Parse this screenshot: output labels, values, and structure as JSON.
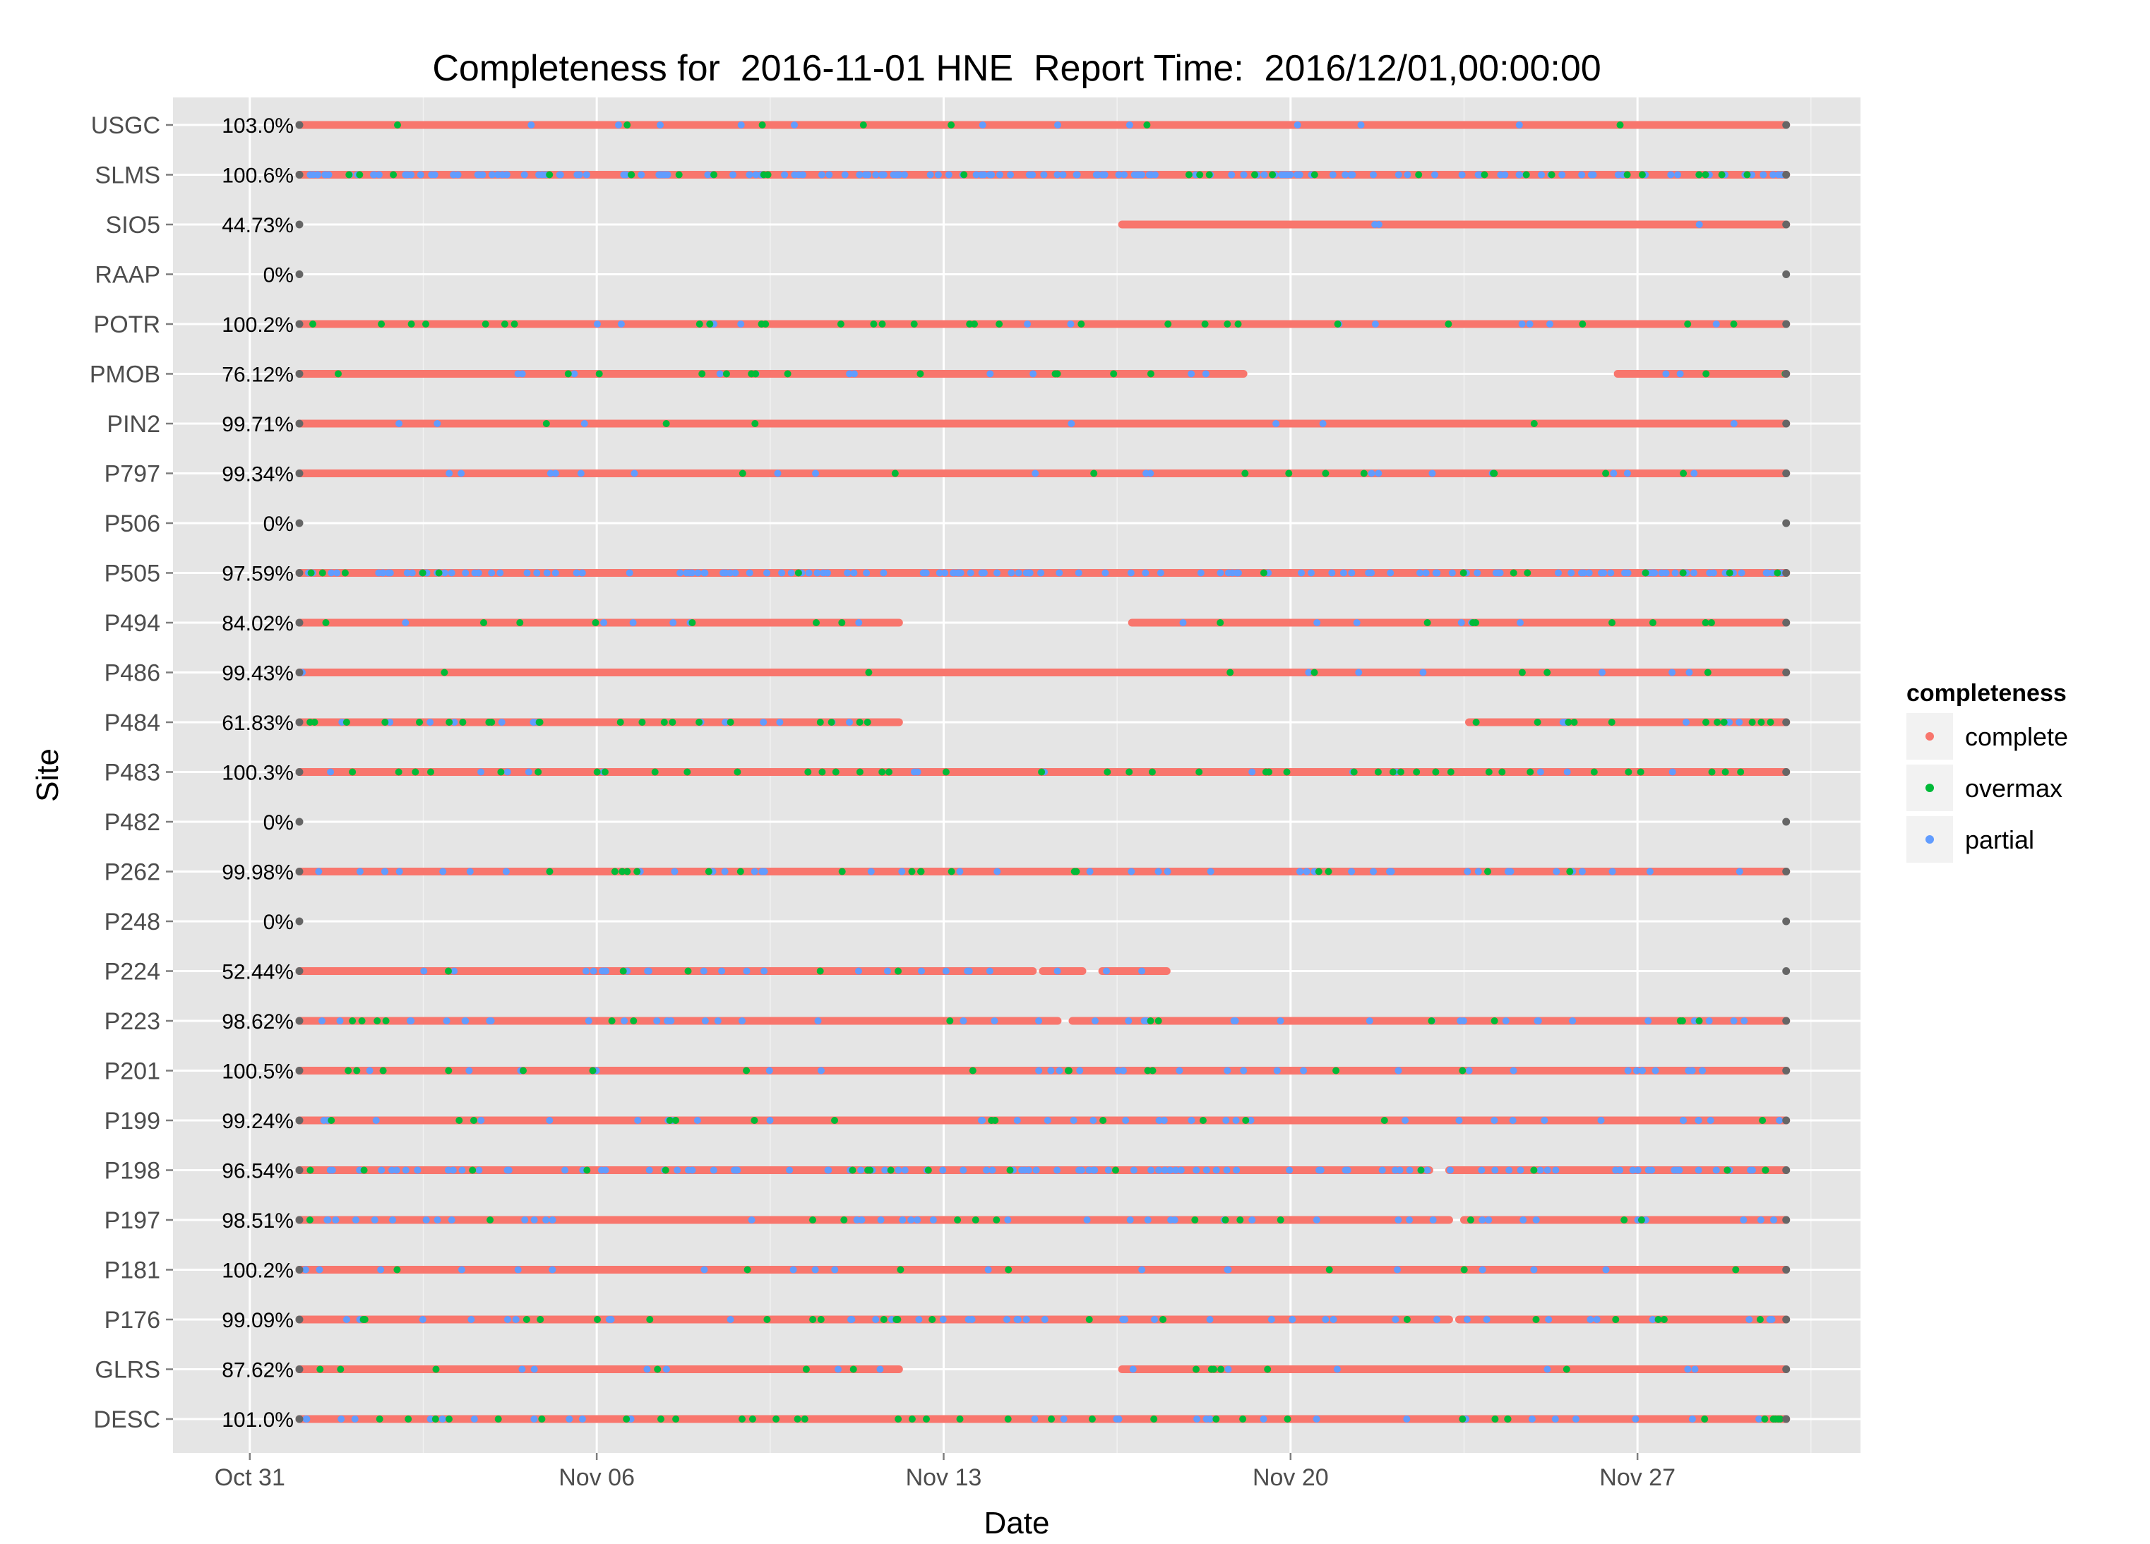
{
  "chart_data": {
    "type": "scatter",
    "title": "Completeness for  2016-11-01 HNE  Report Time:  2016/12/01,00:00:00",
    "xlabel": "Date",
    "ylabel": "Site",
    "x_ticks": [
      "Oct 31",
      "Nov 06",
      "Nov 13",
      "Nov 20",
      "Nov 27"
    ],
    "x_tick_days": [
      0,
      7,
      14,
      21,
      28
    ],
    "x_range_days": [
      -1.55,
      32.5
    ],
    "data_range_days": [
      1,
      31
    ],
    "grid": true,
    "legend": {
      "title": "completeness",
      "placement": "right",
      "entries": [
        {
          "label": "complete",
          "color": "#F8766D"
        },
        {
          "label": "overmax",
          "color": "#00BA38"
        },
        {
          "label": "partial",
          "color": "#619CFF"
        }
      ]
    },
    "endpoint_color": "#666666",
    "series": [
      {
        "site": "USGC",
        "completeness": "103.0%",
        "segments": [
          [
            1,
            31
          ]
        ],
        "partial_level": 0.03,
        "overmax_level": 0.02
      },
      {
        "site": "SLMS",
        "completeness": "100.6%",
        "segments": [
          [
            1,
            31
          ]
        ],
        "partial_level": 0.45,
        "overmax_level": 0.08
      },
      {
        "site": "SIO5",
        "completeness": "44.73%",
        "segments": [
          [
            17.6,
            31
          ]
        ],
        "partial_level": 0.02,
        "overmax_level": 0.0
      },
      {
        "site": "RAAP",
        "completeness": "0%",
        "segments": [],
        "partial_level": 0,
        "overmax_level": 0
      },
      {
        "site": "POTR",
        "completeness": "100.2%",
        "segments": [
          [
            1,
            31
          ]
        ],
        "partial_level": 0.04,
        "overmax_level": 0.08
      },
      {
        "site": "PMOB",
        "completeness": "76.12%",
        "segments": [
          [
            1,
            20.05
          ],
          [
            27.6,
            31
          ]
        ],
        "partial_level": 0.05,
        "overmax_level": 0.06
      },
      {
        "site": "PIN2",
        "completeness": "99.71%",
        "segments": [
          [
            1,
            31
          ]
        ],
        "partial_level": 0.02,
        "overmax_level": 0.01
      },
      {
        "site": "P797",
        "completeness": "99.34%",
        "segments": [
          [
            1,
            31
          ]
        ],
        "partial_level": 0.05,
        "overmax_level": 0.03
      },
      {
        "site": "P506",
        "completeness": "0%",
        "segments": [],
        "partial_level": 0,
        "overmax_level": 0
      },
      {
        "site": "P505",
        "completeness": "97.59%",
        "segments": [
          [
            1,
            31
          ]
        ],
        "partial_level": 0.4,
        "overmax_level": 0.04
      },
      {
        "site": "P494",
        "completeness": "84.02%",
        "segments": [
          [
            1,
            13.1
          ],
          [
            17.8,
            31
          ]
        ],
        "partial_level": 0.04,
        "overmax_level": 0.05
      },
      {
        "site": "P486",
        "completeness": "99.43%",
        "segments": [
          [
            1,
            31
          ]
        ],
        "partial_level": 0.02,
        "overmax_level": 0.02
      },
      {
        "site": "P484",
        "completeness": "61.83%",
        "segments": [
          [
            1,
            13.1
          ],
          [
            24.6,
            31
          ]
        ],
        "partial_level": 0.1,
        "overmax_level": 0.15
      },
      {
        "site": "P483",
        "completeness": "100.3%",
        "segments": [
          [
            1,
            31
          ]
        ],
        "partial_level": 0.04,
        "overmax_level": 0.12
      },
      {
        "site": "P482",
        "completeness": "0%",
        "segments": [],
        "partial_level": 0,
        "overmax_level": 0
      },
      {
        "site": "P262",
        "completeness": "99.98%",
        "segments": [
          [
            1,
            31
          ]
        ],
        "partial_level": 0.12,
        "overmax_level": 0.05
      },
      {
        "site": "P248",
        "completeness": "0%",
        "segments": [],
        "partial_level": 0,
        "overmax_level": 0
      },
      {
        "site": "P224",
        "completeness": "52.44%",
        "segments": [
          [
            1,
            15.8
          ],
          [
            16.0,
            16.8
          ],
          [
            17.2,
            18.5
          ]
        ],
        "partial_level": 0.12,
        "overmax_level": 0.03
      },
      {
        "site": "P223",
        "completeness": "98.62%",
        "segments": [
          [
            1,
            16.3
          ],
          [
            16.6,
            31
          ]
        ],
        "partial_level": 0.12,
        "overmax_level": 0.04
      },
      {
        "site": "P201",
        "completeness": "100.5%",
        "segments": [
          [
            1,
            31
          ]
        ],
        "partial_level": 0.08,
        "overmax_level": 0.04
      },
      {
        "site": "P199",
        "completeness": "99.24%",
        "segments": [
          [
            1,
            31
          ]
        ],
        "partial_level": 0.1,
        "overmax_level": 0.04
      },
      {
        "site": "P198",
        "completeness": "96.54%",
        "segments": [
          [
            1,
            23.8
          ],
          [
            24.2,
            31
          ]
        ],
        "partial_level": 0.3,
        "overmax_level": 0.05
      },
      {
        "site": "P197",
        "completeness": "98.51%",
        "segments": [
          [
            1,
            24.2
          ],
          [
            24.5,
            31
          ]
        ],
        "partial_level": 0.12,
        "overmax_level": 0.04
      },
      {
        "site": "P181",
        "completeness": "100.2%",
        "segments": [
          [
            1,
            31
          ]
        ],
        "partial_level": 0.05,
        "overmax_level": 0.02
      },
      {
        "site": "P176",
        "completeness": "99.09%",
        "segments": [
          [
            1,
            24.2
          ],
          [
            24.4,
            31
          ]
        ],
        "partial_level": 0.12,
        "overmax_level": 0.06
      },
      {
        "site": "GLRS",
        "completeness": "87.62%",
        "segments": [
          [
            1,
            13.1
          ],
          [
            17.6,
            31
          ]
        ],
        "partial_level": 0.04,
        "overmax_level": 0.04
      },
      {
        "site": "DESC",
        "completeness": "101.0%",
        "segments": [
          [
            1,
            31
          ]
        ],
        "partial_level": 0.08,
        "overmax_level": 0.1
      }
    ]
  }
}
